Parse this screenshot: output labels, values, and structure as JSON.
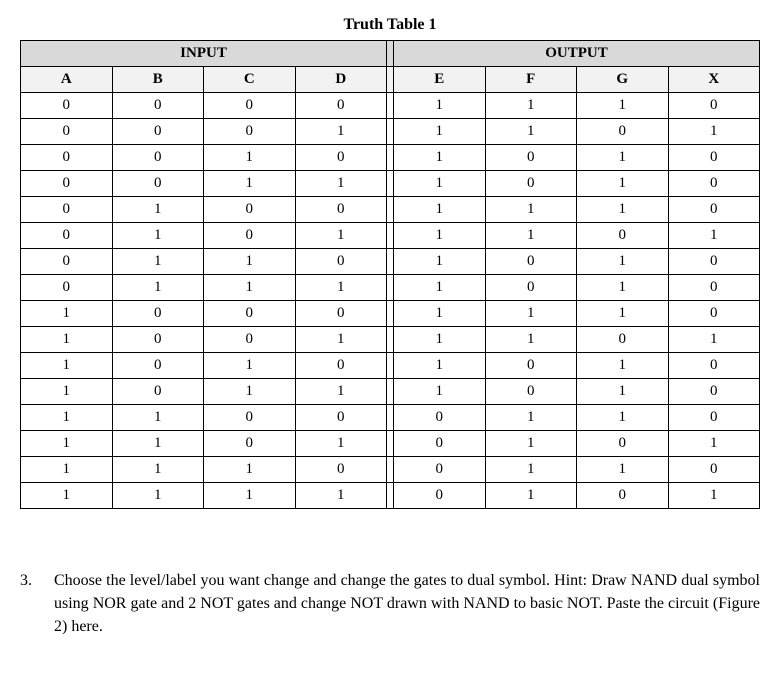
{
  "title": "Truth Table 1",
  "group_headers": {
    "input": "INPUT",
    "output": "OUTPUT"
  },
  "columns": [
    "A",
    "B",
    "C",
    "D",
    "E",
    "F",
    "G",
    "X"
  ],
  "rows": [
    [
      0,
      0,
      0,
      0,
      1,
      1,
      1,
      0
    ],
    [
      0,
      0,
      0,
      1,
      1,
      1,
      0,
      1
    ],
    [
      0,
      0,
      1,
      0,
      1,
      0,
      1,
      0
    ],
    [
      0,
      0,
      1,
      1,
      1,
      0,
      1,
      0
    ],
    [
      0,
      1,
      0,
      0,
      1,
      1,
      1,
      0
    ],
    [
      0,
      1,
      0,
      1,
      1,
      1,
      0,
      1
    ],
    [
      0,
      1,
      1,
      0,
      1,
      0,
      1,
      0
    ],
    [
      0,
      1,
      1,
      1,
      1,
      0,
      1,
      0
    ],
    [
      1,
      0,
      0,
      0,
      1,
      1,
      1,
      0
    ],
    [
      1,
      0,
      0,
      1,
      1,
      1,
      0,
      1
    ],
    [
      1,
      0,
      1,
      0,
      1,
      0,
      1,
      0
    ],
    [
      1,
      0,
      1,
      1,
      1,
      0,
      1,
      0
    ],
    [
      1,
      1,
      0,
      0,
      0,
      1,
      1,
      0
    ],
    [
      1,
      1,
      0,
      1,
      0,
      1,
      0,
      1
    ],
    [
      1,
      1,
      1,
      0,
      0,
      1,
      1,
      0
    ],
    [
      1,
      1,
      1,
      1,
      0,
      1,
      0,
      1
    ]
  ],
  "paragraph": {
    "number": "3.",
    "text": "Choose the level/label you want change and change the gates to dual symbol. Hint: Draw NAND dual symbol using NOR gate and 2 NOT gates and change NOT drawn with NAND to basic NOT. Paste the circuit (Figure 2) here."
  },
  "style": {
    "header_bg": "#d9d9d9",
    "colhead_bg": "#f2f2f2",
    "border_color": "#000000",
    "background": "#ffffff",
    "text_color": "#000000",
    "font_family": "Times New Roman",
    "title_fontsize": 16,
    "cell_fontsize": 15,
    "para_fontsize": 16
  }
}
